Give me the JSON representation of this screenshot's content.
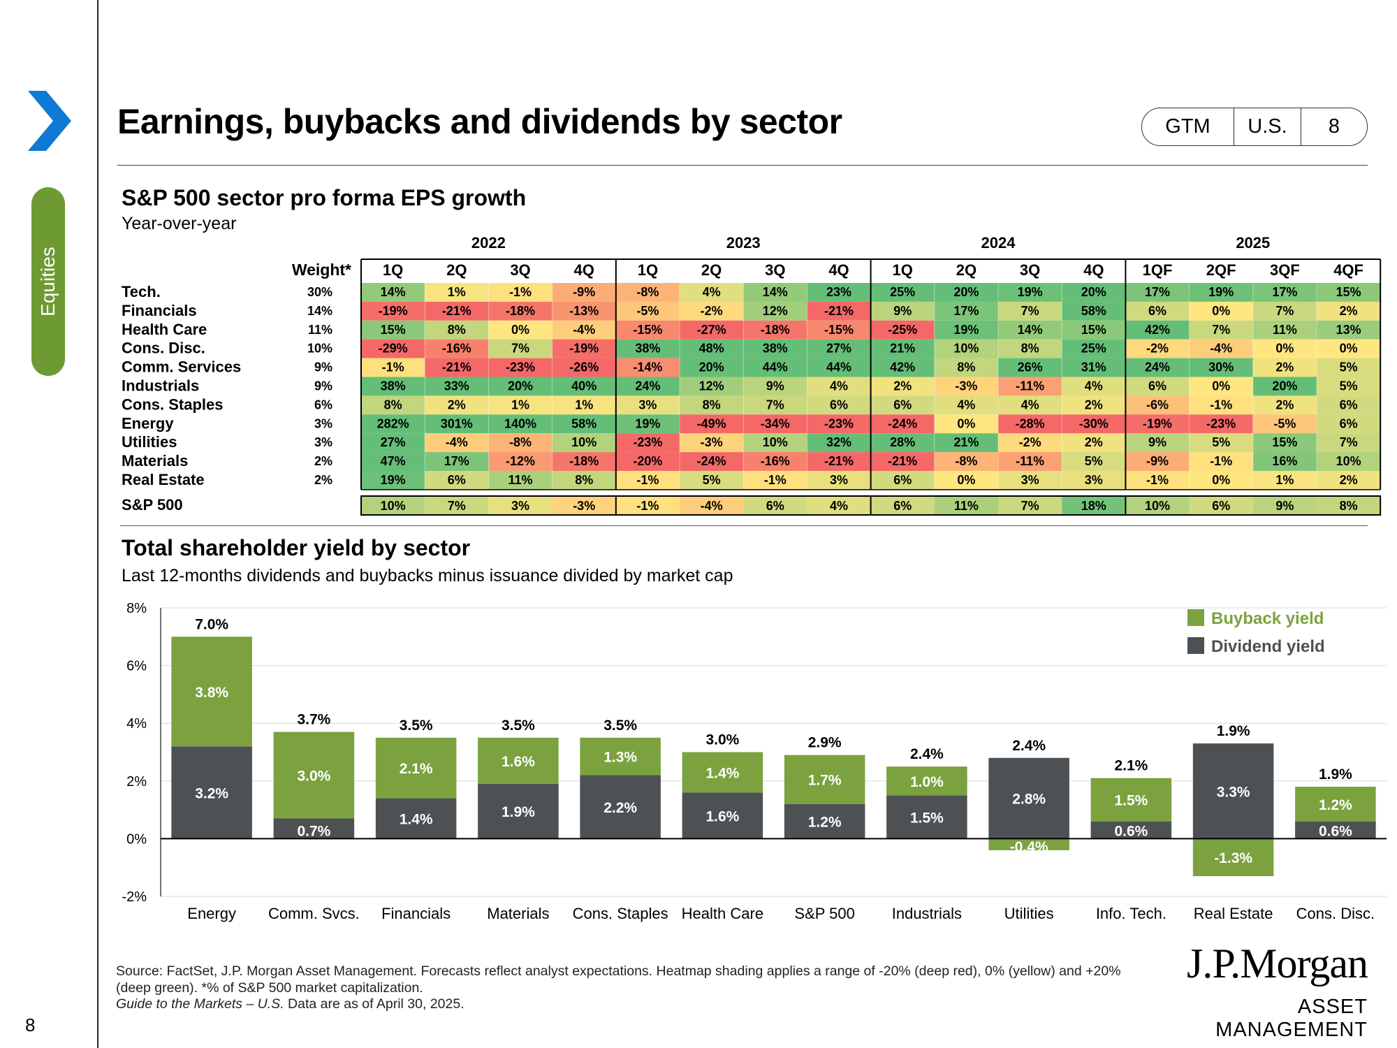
{
  "sidebar": {
    "tab_label": "Equities",
    "page_number": "8"
  },
  "header": {
    "title": "Earnings, buybacks and dividends by sector",
    "badge": [
      "GTM",
      "U.S.",
      "8"
    ]
  },
  "colors": {
    "accent_green": "#6e9a34",
    "dividend_gray": "#4d5154",
    "buyback_green": "#7ba23f",
    "arrow_blue": "#0f7ad4"
  },
  "heatmap": {
    "title": "S&P 500 sector pro forma EPS growth",
    "subtitle": "Year-over-year",
    "weight_header": "Weight*",
    "years": [
      "2022",
      "2023",
      "2024",
      "2025"
    ],
    "quarters": [
      "1Q",
      "2Q",
      "3Q",
      "4Q",
      "1Q",
      "2Q",
      "3Q",
      "4Q",
      "1Q",
      "2Q",
      "3Q",
      "4Q",
      "1QF",
      "2QF",
      "3QF",
      "4QF"
    ],
    "rows": [
      {
        "sector": "Tech.",
        "weight": "30%",
        "values": [
          "14%",
          "1%",
          "-1%",
          "-9%",
          "-8%",
          "4%",
          "14%",
          "23%",
          "25%",
          "20%",
          "19%",
          "20%",
          "17%",
          "19%",
          "17%",
          "15%"
        ]
      },
      {
        "sector": "Financials",
        "weight": "14%",
        "values": [
          "-19%",
          "-21%",
          "-18%",
          "-13%",
          "-5%",
          "-2%",
          "12%",
          "-21%",
          "9%",
          "17%",
          "7%",
          "58%",
          "6%",
          "0%",
          "7%",
          "2%"
        ]
      },
      {
        "sector": "Health Care",
        "weight": "11%",
        "values": [
          "15%",
          "8%",
          "0%",
          "-4%",
          "-15%",
          "-27%",
          "-18%",
          "-15%",
          "-25%",
          "19%",
          "14%",
          "15%",
          "42%",
          "7%",
          "11%",
          "13%"
        ]
      },
      {
        "sector": "Cons. Disc.",
        "weight": "10%",
        "values": [
          "-29%",
          "-16%",
          "7%",
          "-19%",
          "38%",
          "48%",
          "38%",
          "27%",
          "21%",
          "10%",
          "8%",
          "25%",
          "-2%",
          "-4%",
          "0%",
          "0%"
        ]
      },
      {
        "sector": "Comm. Services",
        "weight": "9%",
        "values": [
          "-1%",
          "-21%",
          "-23%",
          "-26%",
          "-14%",
          "20%",
          "44%",
          "44%",
          "42%",
          "8%",
          "26%",
          "31%",
          "24%",
          "30%",
          "2%",
          "5%"
        ]
      },
      {
        "sector": "Industrials",
        "weight": "9%",
        "values": [
          "38%",
          "33%",
          "20%",
          "40%",
          "24%",
          "12%",
          "9%",
          "4%",
          "2%",
          "-3%",
          "-11%",
          "4%",
          "6%",
          "0%",
          "20%",
          "5%"
        ]
      },
      {
        "sector": "Cons. Staples",
        "weight": "6%",
        "values": [
          "8%",
          "2%",
          "1%",
          "1%",
          "3%",
          "8%",
          "7%",
          "6%",
          "6%",
          "4%",
          "4%",
          "2%",
          "-6%",
          "-1%",
          "2%",
          "6%"
        ]
      },
      {
        "sector": "Energy",
        "weight": "3%",
        "values": [
          "282%",
          "301%",
          "140%",
          "58%",
          "19%",
          "-49%",
          "-34%",
          "-23%",
          "-24%",
          "0%",
          "-28%",
          "-30%",
          "-19%",
          "-23%",
          "-5%",
          "6%"
        ]
      },
      {
        "sector": "Utilities",
        "weight": "3%",
        "values": [
          "27%",
          "-4%",
          "-8%",
          "10%",
          "-23%",
          "-3%",
          "10%",
          "32%",
          "28%",
          "21%",
          "-2%",
          "2%",
          "9%",
          "5%",
          "15%",
          "7%"
        ]
      },
      {
        "sector": "Materials",
        "weight": "2%",
        "values": [
          "47%",
          "17%",
          "-12%",
          "-18%",
          "-20%",
          "-24%",
          "-16%",
          "-21%",
          "-21%",
          "-8%",
          "-11%",
          "5%",
          "-9%",
          "-1%",
          "16%",
          "10%"
        ]
      },
      {
        "sector": "Real Estate",
        "weight": "2%",
        "values": [
          "19%",
          "6%",
          "11%",
          "8%",
          "-1%",
          "5%",
          "-1%",
          "3%",
          "6%",
          "0%",
          "3%",
          "3%",
          "-1%",
          "0%",
          "1%",
          "2%"
        ]
      }
    ],
    "total_row": {
      "sector": "S&P 500",
      "values": [
        "10%",
        "7%",
        "3%",
        "-3%",
        "-1%",
        "-4%",
        "6%",
        "4%",
        "6%",
        "11%",
        "7%",
        "18%",
        "10%",
        "6%",
        "9%",
        "8%"
      ]
    }
  },
  "chart_data": {
    "type": "bar",
    "title": "Total shareholder yield by sector",
    "subtitle": "Last 12-months dividends and buybacks minus issuance divided by market cap",
    "categories": [
      "Energy",
      "Comm. Svcs.",
      "Financials",
      "Materials",
      "Cons. Staples",
      "Health Care",
      "S&P 500",
      "Industrials",
      "Utilities",
      "Info. Tech.",
      "Real Estate",
      "Cons. Disc."
    ],
    "series": [
      {
        "name": "Dividend yield",
        "values": [
          3.2,
          0.7,
          1.4,
          1.9,
          2.2,
          1.6,
          1.2,
          1.5,
          2.8,
          0.6,
          3.3,
          0.6
        ]
      },
      {
        "name": "Buyback yield",
        "values": [
          3.8,
          3.0,
          2.1,
          1.6,
          1.3,
          1.4,
          1.7,
          1.0,
          -0.4,
          1.5,
          -1.3,
          1.2
        ]
      }
    ],
    "dividend_labels": [
      "3.2%",
      "0.7%",
      "1.4%",
      "1.9%",
      "2.2%",
      "1.6%",
      "1.2%",
      "1.5%",
      "2.8%",
      "0.6%",
      "3.3%",
      "0.6%"
    ],
    "buyback_labels": [
      "3.8%",
      "3.0%",
      "2.1%",
      "1.6%",
      "1.3%",
      "1.4%",
      "1.7%",
      "1.0%",
      "-0.4%",
      "1.5%",
      "-1.3%",
      "1.2%"
    ],
    "totals": [
      7.0,
      3.7,
      3.5,
      3.5,
      3.5,
      3.0,
      2.9,
      2.4,
      2.4,
      2.1,
      1.9,
      1.9
    ],
    "total_labels": [
      "7.0%",
      "3.7%",
      "3.5%",
      "3.5%",
      "3.5%",
      "3.0%",
      "2.9%",
      "2.4%",
      "2.4%",
      "2.1%",
      "1.9%",
      "1.9%"
    ],
    "ylim": [
      -2,
      8
    ],
    "yticks": [
      -2,
      0,
      2,
      4,
      6,
      8
    ],
    "ytick_labels": [
      "-2%",
      "0%",
      "2%",
      "4%",
      "6%",
      "8%"
    ],
    "grid": true,
    "legend_position": "top-right",
    "legend": [
      "Buyback yield",
      "Dividend yield"
    ]
  },
  "footer": {
    "source": "Source: FactSet, J.P. Morgan Asset Management. Forecasts reflect analyst expectations. Heatmap shading applies a range of -20% (deep red), 0% (yellow) and +20% (deep green). *% of S&P 500 market capitalization.",
    "guide_italic": "Guide to the Markets – U.S.",
    "guide_rest": " Data are as of April 30, 2025."
  },
  "logo": {
    "name": "J.P.Morgan",
    "sub": "ASSET MANAGEMENT"
  }
}
